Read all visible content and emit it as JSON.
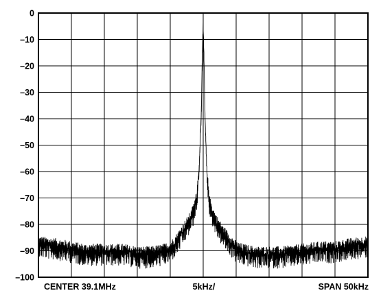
{
  "chart_data": {
    "type": "line",
    "ylim": [
      -100,
      0
    ],
    "y_ticks": [
      "0",
      "–10",
      "–20",
      "–30",
      "–40",
      "–50",
      "–60",
      "–70",
      "–80",
      "–90",
      "–100"
    ],
    "x_labels": {
      "left": "CENTER 39.1MHz",
      "center": "5kHz/",
      "right": "SPAN 50kHz"
    },
    "grid": true,
    "x_divisions": 10,
    "y_divisions": 10,
    "center_frequency_mhz": 39.1,
    "span_khz": 50,
    "khz_per_div": 5,
    "series": [
      {
        "x": [
          -25,
          -22,
          -20,
          -18,
          -15,
          -12,
          -10,
          -8,
          -6,
          -5,
          -4,
          -3,
          -2,
          -1.5,
          -1,
          -0.6,
          -0.3,
          -0.15,
          0,
          0.15,
          0.3,
          0.6,
          1,
          1.5,
          2,
          3,
          4,
          5,
          6,
          8,
          10,
          12,
          15,
          18,
          20,
          22,
          25
        ],
        "values": [
          -87,
          -88,
          -89,
          -90,
          -90,
          -90,
          -91,
          -91,
          -90,
          -89,
          -86,
          -82,
          -78,
          -75,
          -70,
          -58,
          -38,
          -18,
          -4,
          -20,
          -42,
          -62,
          -72,
          -76,
          -79,
          -83,
          -86,
          -89,
          -90,
          -91,
          -91,
          -91,
          -90,
          -89,
          -89,
          -88,
          -87
        ]
      }
    ]
  },
  "style": {
    "trace_color": "#000000",
    "grid_color": "#000000",
    "background": "#ffffff"
  }
}
